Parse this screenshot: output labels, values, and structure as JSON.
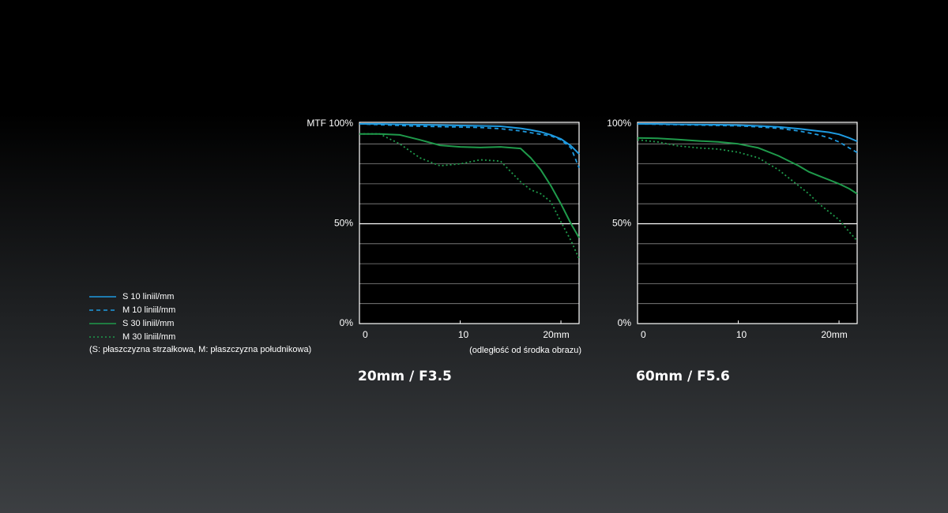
{
  "legend": [
    {
      "name": "S  10 liniil/mm",
      "color": "#1e9ae0",
      "style": "solid"
    },
    {
      "name": "M  10 liniil/mm",
      "color": "#1e9ae0",
      "style": "dashed"
    },
    {
      "name": "S  30 liniil/mm",
      "color": "#1f9a4b",
      "style": "solid"
    },
    {
      "name": "M  30 liniil/mm",
      "color": "#1f9a4b",
      "style": "dotted"
    }
  ],
  "note": "(S: płaszczyzna strzałkowa, M: płaszczyzna południkowa)",
  "chart_data": [
    {
      "type": "line",
      "title": "20mm / F3.5",
      "xlabel": "(odległość od środka obrazu)",
      "x": [
        0,
        2,
        4,
        6,
        8,
        10,
        12,
        14,
        16,
        17,
        18,
        19,
        20,
        21,
        21.8
      ],
      "xlim": [
        0,
        21.8
      ],
      "xticks": [
        0,
        10,
        {
          "value": 20,
          "label": "20mm"
        }
      ],
      "ylim": [
        0,
        100
      ],
      "yticks": [
        {
          "value": 0,
          "label": "0%"
        },
        {
          "value": 10,
          "label": null
        },
        {
          "value": 20,
          "label": null
        },
        {
          "value": 30,
          "label": null
        },
        {
          "value": 40,
          "label": null
        },
        {
          "value": 50,
          "label": "50%"
        },
        {
          "value": 60,
          "label": null
        },
        {
          "value": 70,
          "label": null
        },
        {
          "value": 80,
          "label": null
        },
        {
          "value": 90,
          "label": null
        },
        {
          "value": 100,
          "label": "MTF 100%"
        }
      ],
      "grid": true,
      "series": [
        {
          "color": "#1e9ae0",
          "style": "solid",
          "values": [
            100,
            100,
            99.8,
            99.6,
            99.4,
            99.2,
            99,
            98.8,
            97.8,
            97,
            96,
            94.5,
            92.5,
            89,
            85
          ]
        },
        {
          "color": "#1e9ae0",
          "style": "dashed",
          "values": [
            100,
            99.6,
            99.2,
            98.8,
            98.6,
            98.4,
            98.2,
            97.6,
            96.5,
            95.6,
            94.8,
            94,
            92,
            88,
            78
          ]
        },
        {
          "color": "#1f9a4b",
          "style": "solid",
          "values": [
            95,
            95,
            94.5,
            92,
            89.3,
            88.5,
            88.2,
            88.5,
            87.7,
            83,
            77,
            69,
            60,
            50,
            43
          ]
        },
        {
          "color": "#1f9a4b",
          "style": "dotted",
          "values": [
            95,
            95,
            90,
            83,
            79,
            80,
            82,
            81.4,
            71,
            67,
            65,
            61,
            51,
            41.5,
            32.5
          ]
        }
      ]
    },
    {
      "type": "line",
      "title": "60mm / F5.6",
      "x": [
        0,
        2,
        4,
        6,
        8,
        10,
        12,
        14,
        16,
        17,
        18,
        19,
        20,
        21,
        21.8
      ],
      "xlim": [
        0,
        21.8
      ],
      "xticks": [
        0,
        10,
        {
          "value": 20,
          "label": "20mm"
        }
      ],
      "ylim": [
        0,
        100
      ],
      "yticks": [
        {
          "value": 0,
          "label": "0%"
        },
        {
          "value": 10,
          "label": null
        },
        {
          "value": 20,
          "label": null
        },
        {
          "value": 30,
          "label": null
        },
        {
          "value": 40,
          "label": null
        },
        {
          "value": 50,
          "label": "50%"
        },
        {
          "value": 60,
          "label": null
        },
        {
          "value": 70,
          "label": null
        },
        {
          "value": 80,
          "label": null
        },
        {
          "value": 90,
          "label": null
        },
        {
          "value": 100,
          "label": "100%"
        }
      ],
      "grid": true,
      "series": [
        {
          "color": "#1e9ae0",
          "style": "solid",
          "values": [
            100,
            100,
            99.8,
            99.7,
            99.6,
            99.4,
            99,
            98.5,
            97.6,
            97,
            96.4,
            95.8,
            94.8,
            93,
            91.3
          ]
        },
        {
          "color": "#1e9ae0",
          "style": "dashed",
          "values": [
            100,
            99.8,
            99.6,
            99.4,
            99.2,
            99,
            98.5,
            97.8,
            96.5,
            95.5,
            94.5,
            93,
            91,
            88,
            85.7
          ]
        },
        {
          "color": "#1f9a4b",
          "style": "solid",
          "values": [
            93,
            92.8,
            92.2,
            91.5,
            91,
            90,
            88,
            84,
            79,
            76,
            74,
            72,
            70,
            67.6,
            65
          ]
        },
        {
          "color": "#1f9a4b",
          "style": "dotted",
          "values": [
            92,
            91,
            89,
            88,
            87.4,
            85.8,
            83,
            77,
            69,
            65,
            60,
            56,
            52,
            46,
            41.5
          ]
        }
      ]
    }
  ]
}
